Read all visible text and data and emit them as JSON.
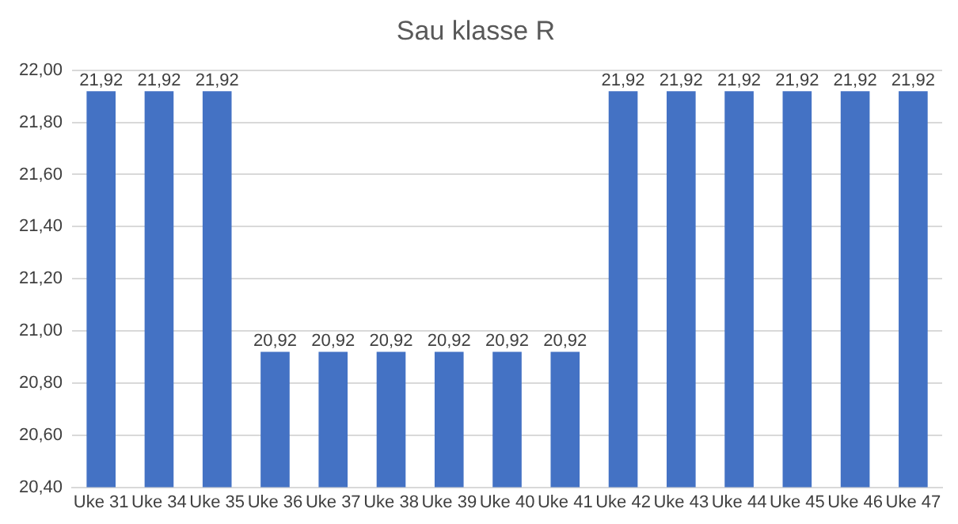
{
  "chart_data": {
    "type": "bar",
    "title": "Sau klasse R",
    "categories": [
      "Uke 31",
      "Uke 34",
      "Uke 35",
      "Uke 36",
      "Uke 37",
      "Uke 38",
      "Uke 39",
      "Uke 40",
      "Uke 41",
      "Uke 42",
      "Uke 43",
      "Uke 44",
      "Uke 45",
      "Uke 46",
      "Uke 47"
    ],
    "values": [
      21.92,
      21.92,
      21.92,
      20.92,
      20.92,
      20.92,
      20.92,
      20.92,
      20.92,
      21.92,
      21.92,
      21.92,
      21.92,
      21.92,
      21.92
    ],
    "value_labels": [
      "21,92",
      "21,92",
      "21,92",
      "20,92",
      "20,92",
      "20,92",
      "20,92",
      "20,92",
      "20,92",
      "21,92",
      "21,92",
      "21,92",
      "21,92",
      "21,92",
      "21,92"
    ],
    "color": "#4472c4",
    "ylim": [
      20.4,
      22.0
    ],
    "yticks": [
      {
        "value": 20.4,
        "label": "20,40"
      },
      {
        "value": 20.6,
        "label": "20,60"
      },
      {
        "value": 20.8,
        "label": "20,80"
      },
      {
        "value": 21.0,
        "label": "21,00"
      },
      {
        "value": 21.2,
        "label": "21,20"
      },
      {
        "value": 21.4,
        "label": "21,40"
      },
      {
        "value": 21.6,
        "label": "21,60"
      },
      {
        "value": 21.8,
        "label": "21,80"
      },
      {
        "value": 22.0,
        "label": "22,00"
      }
    ],
    "grid": "y",
    "legend": false
  }
}
